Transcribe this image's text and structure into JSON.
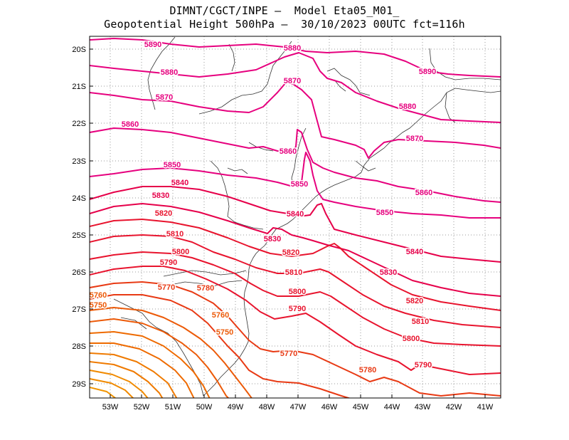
{
  "header": {
    "line1": "DIMNT/CGCT/INPE –  Model Eta05_M01_",
    "line2": "Geopotential Height 500hPa –  30/10/2023 00UTC fct=116h"
  },
  "axes": {
    "lat_labels": [
      "20S",
      "21S",
      "22S",
      "23S",
      "24S",
      "25S",
      "26S",
      "27S",
      "28S",
      "29S"
    ],
    "lon_labels": [
      "53W",
      "52W",
      "51W",
      "50W",
      "49W",
      "48W",
      "47W",
      "46W",
      "45W",
      "44W",
      "43W",
      "42W",
      "41W"
    ]
  },
  "colors": {
    "high": "#e6007e",
    "mid": "#e8142e",
    "low": "#ee6a00",
    "coast": "#333333",
    "grid": "#999999"
  },
  "contours": [
    {
      "value": "5890",
      "color": "#e6007e"
    },
    {
      "value": "5880",
      "color": "#e6007e"
    },
    {
      "value": "5870",
      "color": "#e6007e"
    },
    {
      "value": "5860",
      "color": "#e6007e"
    },
    {
      "value": "5850",
      "color": "#e6007e"
    },
    {
      "value": "5840",
      "color": "#e6004a"
    },
    {
      "value": "5830",
      "color": "#e6004a"
    },
    {
      "value": "5820",
      "color": "#e8142e"
    },
    {
      "value": "5810",
      "color": "#e8142e"
    },
    {
      "value": "5800",
      "color": "#e8142e"
    },
    {
      "value": "5790",
      "color": "#e8142e"
    },
    {
      "value": "5780",
      "color": "#e83a14"
    },
    {
      "value": "5770",
      "color": "#e83a14"
    },
    {
      "value": "5760",
      "color": "#ec5a08"
    },
    {
      "value": "5750",
      "color": "#ec5a08"
    }
  ],
  "labels": [
    {
      "text": "5890",
      "c": 0
    },
    {
      "text": "5880",
      "c": 1
    },
    {
      "text": "5890",
      "c": 0
    },
    {
      "text": "5880",
      "c": 1
    },
    {
      "text": "5870",
      "c": 2
    },
    {
      "text": "5880",
      "c": 1
    },
    {
      "text": "5870",
      "c": 2
    },
    {
      "text": "5860",
      "c": 3
    },
    {
      "text": "5870",
      "c": 2
    },
    {
      "text": "5860",
      "c": 3
    },
    {
      "text": "5850",
      "c": 4
    },
    {
      "text": "5840",
      "c": 5
    },
    {
      "text": "5850",
      "c": 4
    },
    {
      "text": "5860",
      "c": 3
    },
    {
      "text": "5830",
      "c": 6
    },
    {
      "text": "5840",
      "c": 5
    },
    {
      "text": "5850",
      "c": 4
    },
    {
      "text": "5820",
      "c": 7
    },
    {
      "text": "5830",
      "c": 6
    },
    {
      "text": "5810",
      "c": 8
    },
    {
      "text": "5820",
      "c": 7
    },
    {
      "text": "5840",
      "c": 5
    },
    {
      "text": "5800",
      "c": 9
    },
    {
      "text": "5790",
      "c": 10
    },
    {
      "text": "5810",
      "c": 8
    },
    {
      "text": "5830",
      "c": 6
    },
    {
      "text": "5770",
      "c": 12
    },
    {
      "text": "5780",
      "c": 11
    },
    {
      "text": "5800",
      "c": 9
    },
    {
      "text": "5820",
      "c": 7
    },
    {
      "text": "5760",
      "c": 13
    },
    {
      "text": "5750",
      "c": 14
    },
    {
      "text": "5790",
      "c": 10
    },
    {
      "text": "5810",
      "c": 8
    },
    {
      "text": "5760",
      "c": 13
    },
    {
      "text": "5750",
      "c": 14
    },
    {
      "text": "5800",
      "c": 9
    },
    {
      "text": "5770",
      "c": 12
    },
    {
      "text": "5780",
      "c": 11
    },
    {
      "text": "5790",
      "c": 10
    }
  ]
}
